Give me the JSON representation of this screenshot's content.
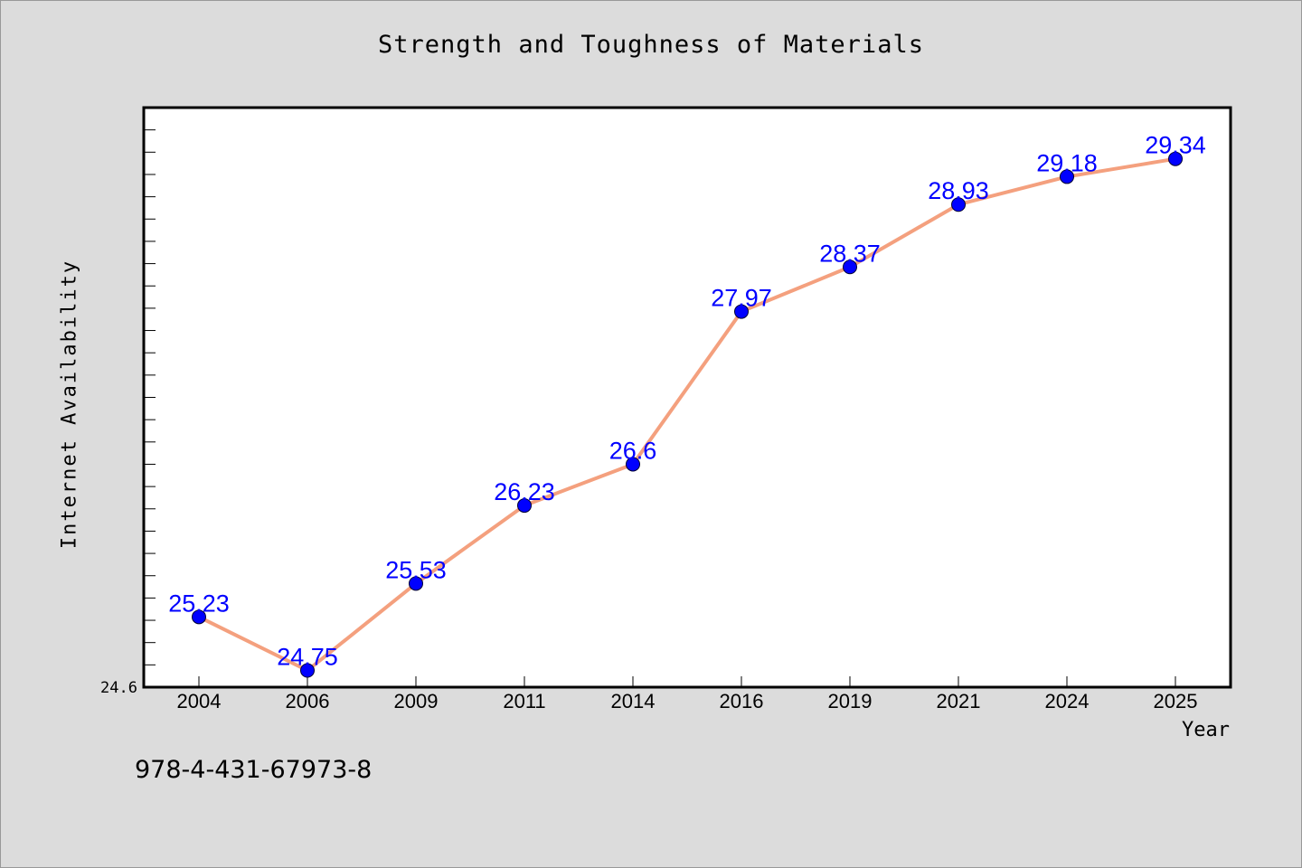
{
  "chart_data": {
    "type": "line",
    "title": "Strength and Toughness of Materials",
    "xlabel": "Year",
    "ylabel": "Internet Availability",
    "categories": [
      "2004",
      "2006",
      "2009",
      "2011",
      "2014",
      "2016",
      "2019",
      "2021",
      "2024",
      "2025"
    ],
    "series": [
      {
        "values": [
          25.23,
          24.75,
          25.53,
          26.23,
          26.6,
          27.97,
          28.37,
          28.93,
          29.18,
          29.34
        ],
        "labels": [
          "25.23",
          "24.75",
          "25.53",
          "26.23",
          "26.6",
          "27.97",
          "28.37",
          "28.93",
          "29.18",
          "29.34"
        ]
      }
    ],
    "y_tick_labels": [
      {
        "value": 24.6,
        "label": "24.6"
      }
    ],
    "ylim": [
      24.6,
      29.8
    ],
    "grid": false,
    "colors": {
      "line": "#f4a07e",
      "marker": "#0000ff",
      "data_label": "#0000ff",
      "plot_background": "#ffffff",
      "page_background": "#dcdcdc"
    }
  },
  "footer": {
    "code": "978-4-431-67973-8"
  }
}
